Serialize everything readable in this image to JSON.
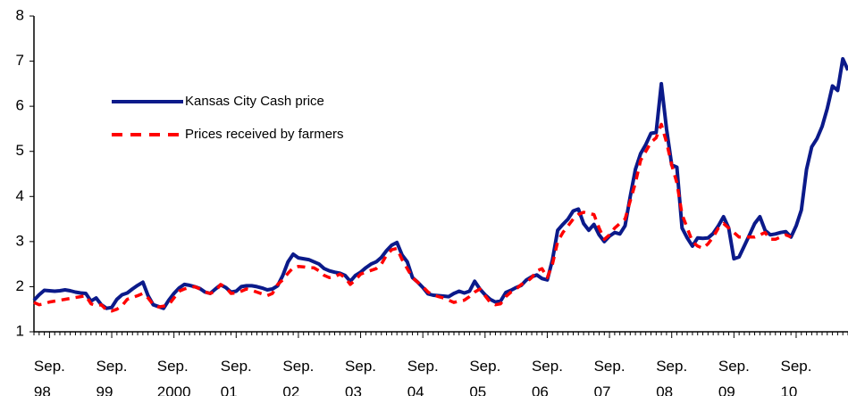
{
  "chart_data": {
    "type": "line",
    "categories": [
      null,
      null,
      null,
      "Sep. 98",
      null,
      null,
      null,
      null,
      null,
      null,
      null,
      null,
      null,
      null,
      null,
      "Sep. 99",
      null,
      null,
      null,
      null,
      null,
      null,
      null,
      null,
      null,
      null,
      null,
      "Sep. 2000",
      null,
      null,
      null,
      null,
      null,
      null,
      null,
      null,
      null,
      null,
      null,
      "Sep. 01",
      null,
      null,
      null,
      null,
      null,
      null,
      null,
      null,
      null,
      null,
      null,
      "Sep. 02",
      null,
      null,
      null,
      null,
      null,
      null,
      null,
      null,
      null,
      null,
      null,
      "Sep. 03",
      null,
      null,
      null,
      null,
      null,
      null,
      null,
      null,
      null,
      null,
      null,
      "Sep. 04",
      null,
      null,
      null,
      null,
      null,
      null,
      null,
      null,
      null,
      null,
      null,
      "Sep. 05",
      null,
      null,
      null,
      null,
      null,
      null,
      null,
      null,
      null,
      null,
      null,
      "Sep. 06",
      null,
      null,
      null,
      null,
      null,
      null,
      null,
      null,
      null,
      null,
      null,
      "Sep. 07",
      null,
      null,
      null,
      null,
      null,
      null,
      null,
      null,
      null,
      null,
      null,
      "Sep. 08",
      null,
      null,
      null,
      null,
      null,
      null,
      null,
      null,
      null,
      null,
      null,
      "Sep. 09",
      null,
      null,
      null,
      null,
      null,
      null,
      null,
      null,
      null,
      null,
      null,
      "Sep. 10",
      null,
      null,
      null,
      null,
      null,
      null,
      null,
      null,
      null,
      null
    ],
    "series": [
      {
        "name": "Kansas City Cash price",
        "color": "#0b1a8a",
        "dash": false,
        "values": [
          1.7,
          1.82,
          1.92,
          1.91,
          1.9,
          1.91,
          1.93,
          1.91,
          1.88,
          1.86,
          1.85,
          1.68,
          1.75,
          1.6,
          1.52,
          1.54,
          1.72,
          1.82,
          1.86,
          1.95,
          2.03,
          2.1,
          1.8,
          1.6,
          1.56,
          1.52,
          1.7,
          1.85,
          1.97,
          2.05,
          2.03,
          2.0,
          1.96,
          1.88,
          1.85,
          1.95,
          2.04,
          1.98,
          1.88,
          1.9,
          2.0,
          2.02,
          2.02,
          2.0,
          1.97,
          1.93,
          1.95,
          2.02,
          2.25,
          2.55,
          2.72,
          2.64,
          2.62,
          2.6,
          2.55,
          2.5,
          2.4,
          2.35,
          2.32,
          2.3,
          2.25,
          2.12,
          2.25,
          2.32,
          2.42,
          2.5,
          2.55,
          2.65,
          2.8,
          2.92,
          2.98,
          2.7,
          2.55,
          2.2,
          2.1,
          1.98,
          1.84,
          1.81,
          1.8,
          1.79,
          1.78,
          1.85,
          1.9,
          1.86,
          1.9,
          2.12,
          1.95,
          1.82,
          1.72,
          1.66,
          1.68,
          1.87,
          1.92,
          1.98,
          2.03,
          2.15,
          2.22,
          2.26,
          2.18,
          2.15,
          2.6,
          3.25,
          3.38,
          3.5,
          3.68,
          3.72,
          3.4,
          3.25,
          3.38,
          3.15,
          3.0,
          3.12,
          3.2,
          3.17,
          3.35,
          4.0,
          4.6,
          4.95,
          5.15,
          5.4,
          5.42,
          6.5,
          5.5,
          4.7,
          4.65,
          3.3,
          3.08,
          2.9,
          3.08,
          3.07,
          3.08,
          3.18,
          3.35,
          3.55,
          3.3,
          2.62,
          2.66,
          2.9,
          3.15,
          3.4,
          3.55,
          3.25,
          3.15,
          3.17,
          3.2,
          3.22,
          3.1,
          3.35,
          3.7,
          4.6,
          5.1,
          5.28,
          5.55,
          5.95,
          6.45,
          6.35,
          7.05,
          6.8
        ]
      },
      {
        "name": "Prices received by farmers",
        "color": "#ff0000",
        "dash": true,
        "values": [
          1.65,
          1.6,
          1.62,
          1.66,
          1.68,
          1.7,
          1.72,
          1.74,
          1.76,
          1.78,
          1.8,
          1.62,
          1.58,
          1.6,
          1.48,
          1.46,
          1.5,
          1.58,
          1.72,
          1.76,
          1.8,
          1.85,
          1.75,
          1.6,
          1.55,
          1.57,
          1.6,
          1.75,
          1.9,
          1.95,
          1.98,
          2.0,
          1.95,
          1.88,
          1.85,
          1.9,
          2.05,
          1.98,
          1.85,
          1.86,
          1.9,
          1.95,
          1.92,
          1.88,
          1.84,
          1.8,
          1.85,
          2.05,
          2.15,
          2.3,
          2.42,
          2.45,
          2.44,
          2.42,
          2.42,
          2.35,
          2.25,
          2.2,
          2.22,
          2.28,
          2.2,
          2.05,
          2.15,
          2.28,
          2.32,
          2.36,
          2.4,
          2.5,
          2.7,
          2.82,
          2.85,
          2.6,
          2.4,
          2.2,
          2.1,
          2.0,
          1.88,
          1.82,
          1.78,
          1.75,
          1.7,
          1.65,
          1.68,
          1.7,
          1.78,
          1.88,
          1.95,
          1.8,
          1.65,
          1.6,
          1.62,
          1.78,
          1.88,
          1.95,
          2.05,
          2.1,
          2.2,
          2.35,
          2.4,
          2.2,
          2.5,
          3.0,
          3.2,
          3.35,
          3.5,
          3.6,
          3.65,
          3.62,
          3.6,
          3.3,
          3.05,
          3.15,
          3.3,
          3.4,
          3.5,
          3.9,
          4.3,
          4.8,
          5.0,
          5.2,
          5.3,
          5.6,
          5.2,
          4.7,
          4.3,
          3.6,
          3.3,
          3.0,
          2.9,
          2.85,
          2.95,
          3.1,
          3.3,
          3.4,
          3.3,
          3.2,
          3.1,
          3.1,
          3.1,
          3.1,
          3.15,
          3.2,
          3.05,
          3.05,
          3.1,
          3.15,
          3.1,
          null,
          null,
          null,
          null,
          null,
          null,
          null,
          null,
          null,
          null,
          null
        ]
      }
    ],
    "ylim": [
      1,
      8
    ],
    "yticks": [
      1,
      2,
      3,
      4,
      5,
      6,
      7,
      8
    ],
    "grid": false,
    "legend": "upper left"
  }
}
